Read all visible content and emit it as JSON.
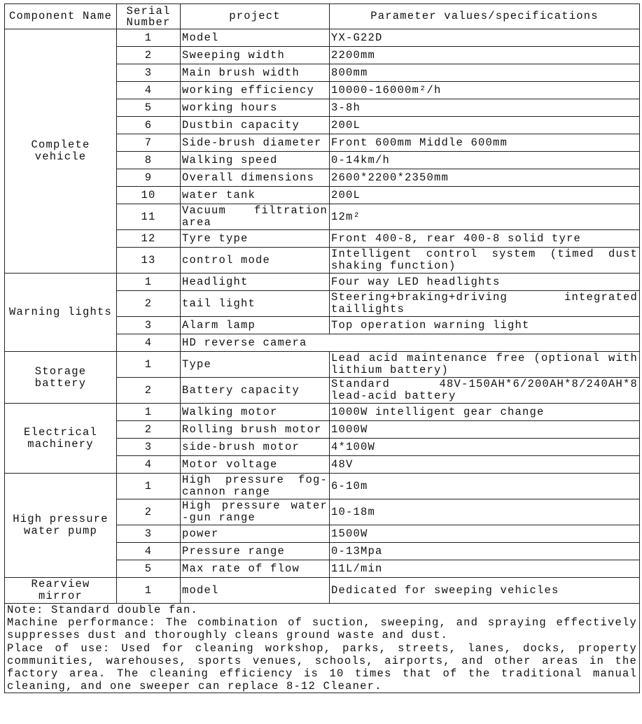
{
  "header": {
    "component": "Component Name",
    "serial": "Serial Number",
    "project": "project",
    "params": "Parameter values/specifications"
  },
  "groups": [
    {
      "name": "Complete vehicle",
      "rows": [
        {
          "no": "1",
          "item": "Model",
          "value": "YX-G22D"
        },
        {
          "no": "2",
          "item": "Sweeping width",
          "value": "2200mm"
        },
        {
          "no": "3",
          "item": "Main brush width",
          "value": "800mm"
        },
        {
          "no": "4",
          "item": "working efficiency",
          "value": "10000-16000m²/h"
        },
        {
          "no": "5",
          "item": "working hours",
          "value": "3-8h"
        },
        {
          "no": "6",
          "item": "Dustbin capacity",
          "value": "200L"
        },
        {
          "no": "7",
          "item": "Side-brush diameter",
          "value": "Front 600mm  Middle 600mm"
        },
        {
          "no": "8",
          "item": "Walking speed",
          "value": "0-14km/h"
        },
        {
          "no": "9",
          "item": "Overall dimensions",
          "value": "2600*2200*2350mm"
        },
        {
          "no": "10",
          "item": "water tank",
          "value": "200L"
        },
        {
          "no": "11",
          "item": "Vacuum filtration area",
          "value": "12m²"
        },
        {
          "no": "12",
          "item": "Tyre type",
          "value": "Front 400-8, rear 400-8 solid tyre"
        },
        {
          "no": "13",
          "item": "control mode",
          "value": "Intelligent control system (timed dust shaking function)"
        }
      ]
    },
    {
      "name": "Warning lights",
      "rows": [
        {
          "no": "1",
          "item": "Headlight",
          "value": "Four way LED headlights"
        },
        {
          "no": "2",
          "item": "tail light",
          "value": "Steering+braking+driving integrated taillights"
        },
        {
          "no": "3",
          "item": "Alarm lamp",
          "value": "Top operation warning light"
        },
        {
          "no": "4",
          "item": "HD reverse camera"
        }
      ]
    },
    {
      "name": "Storage battery",
      "rows": [
        {
          "no": "1",
          "item": "Type",
          "value": "Lead acid maintenance free (optional with lithium battery)"
        },
        {
          "no": "2",
          "item": "Battery capacity",
          "value": "Standard 48V-150AH*6/200AH*8/240AH*8 lead-acid battery"
        }
      ]
    },
    {
      "name": "Electrical machinery",
      "rows": [
        {
          "no": "1",
          "item": "Walking motor",
          "value": "1000W intelligent gear change"
        },
        {
          "no": "2",
          "item": "Rolling brush motor",
          "value": "1000W"
        },
        {
          "no": "3",
          "item": "side-brush motor",
          "value": "4*100W"
        },
        {
          "no": "4",
          "item": "Motor voltage",
          "value": "48V"
        }
      ]
    },
    {
      "name": "High pressure water pump",
      "rows": [
        {
          "no": "1",
          "item": "High pressure fog-cannon range",
          "value": "6-10m"
        },
        {
          "no": "2",
          "item": "High pressure water -gun range",
          "value": "10-18m"
        },
        {
          "no": "3",
          "item": "power",
          "value": "1500W"
        },
        {
          "no": "4",
          "item": "Pressure range",
          "value": "0-13Mpa"
        },
        {
          "no": "5",
          "item": "Max rate of flow",
          "value": "11L/min"
        }
      ]
    },
    {
      "name": "Rearview mirror",
      "rows": [
        {
          "no": "1",
          "item": "model",
          "value": "Dedicated for sweeping vehicles"
        }
      ]
    }
  ],
  "notes": [
    "Note: Standard  double fan.",
    "Machine performance: The combination of suction, sweeping, and spraying effectively suppresses dust and thoroughly cleans ground waste and dust.",
    "Place of use: Used for cleaning workshop, parks, streets, lanes, docks, property communities, warehouses, sports venues, schools, airports, and other areas in the factory area. The cleaning efficiency is 10 times that of the traditional manual cleaning, and one sweeper can replace 8-12 Cleaner."
  ]
}
